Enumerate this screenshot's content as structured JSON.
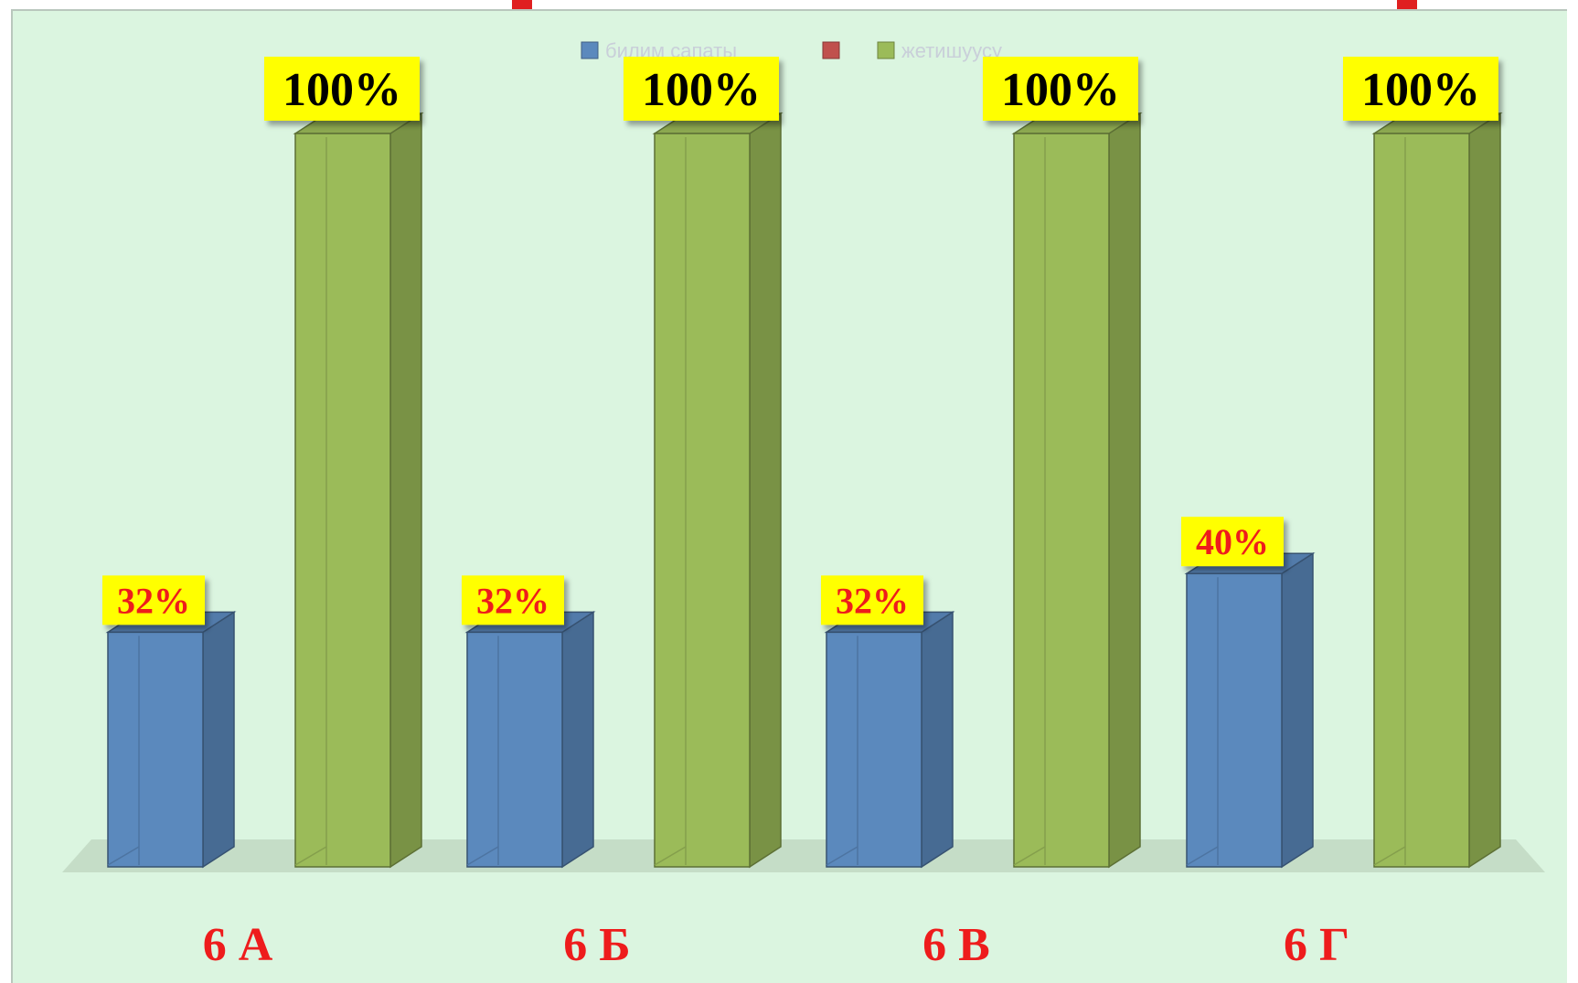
{
  "chart_data": {
    "type": "bar",
    "categories": [
      "6 А",
      "6 Б",
      "6 В",
      "6 Г"
    ],
    "series": [
      {
        "name": "билим сапаты",
        "values": [
          32,
          32,
          32,
          40
        ],
        "color": "#5b89bd",
        "labels": [
          "32%",
          "32%",
          "32%",
          "40%"
        ]
      },
      {
        "name": "",
        "values": [
          0,
          0,
          0,
          0
        ],
        "color": "#c0504d",
        "labels": [
          "",
          "",
          "",
          ""
        ]
      },
      {
        "name": "жетишуусу",
        "values": [
          100,
          100,
          100,
          100
        ],
        "color": "#9bbb59",
        "labels": [
          "100%",
          "100%",
          "100%",
          "100%"
        ]
      }
    ],
    "ylim": [
      0,
      100
    ],
    "legend": "top-center",
    "grid": false,
    "data_label_background": "#ffff00",
    "background": "#dbf5e0"
  }
}
